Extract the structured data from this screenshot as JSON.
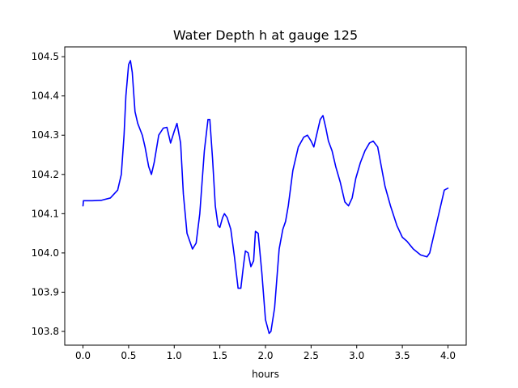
{
  "chart_data": {
    "type": "line",
    "title": "Water Depth h at gauge 125",
    "xlabel": "hours",
    "ylabel": "",
    "xlim": [
      -0.2,
      4.2
    ],
    "ylim": [
      103.765,
      104.525
    ],
    "x_ticks": [
      "0.0",
      "0.5",
      "1.0",
      "1.5",
      "2.0",
      "2.5",
      "3.0",
      "3.5",
      "4.0"
    ],
    "x_tick_values": [
      0.0,
      0.5,
      1.0,
      1.5,
      2.0,
      2.5,
      3.0,
      3.5,
      4.0
    ],
    "y_ticks": [
      "103.8",
      "103.9",
      "104.0",
      "104.1",
      "104.2",
      "104.3",
      "104.4",
      "104.5"
    ],
    "y_tick_values": [
      103.8,
      103.9,
      104.0,
      104.1,
      104.2,
      104.3,
      104.4,
      104.5
    ],
    "grid": false,
    "series": [
      {
        "color": "#0000ff",
        "x": [
          0.0,
          0.005,
          0.1,
          0.2,
          0.3,
          0.38,
          0.42,
          0.45,
          0.47,
          0.5,
          0.52,
          0.54,
          0.57,
          0.6,
          0.65,
          0.68,
          0.72,
          0.75,
          0.78,
          0.83,
          0.88,
          0.92,
          0.96,
          1.0,
          1.03,
          1.07,
          1.1,
          1.14,
          1.2,
          1.24,
          1.28,
          1.33,
          1.37,
          1.39,
          1.42,
          1.45,
          1.48,
          1.5,
          1.53,
          1.55,
          1.58,
          1.62,
          1.66,
          1.7,
          1.73,
          1.76,
          1.78,
          1.81,
          1.84,
          1.87,
          1.89,
          1.92,
          1.96,
          2.0,
          2.04,
          2.06,
          2.1,
          2.13,
          2.15,
          2.19,
          2.22,
          2.25,
          2.3,
          2.36,
          2.42,
          2.46,
          2.5,
          2.53,
          2.56,
          2.6,
          2.63,
          2.66,
          2.69,
          2.73,
          2.77,
          2.82,
          2.87,
          2.91,
          2.95,
          2.99,
          3.04,
          3.09,
          3.14,
          3.18,
          3.23,
          3.27,
          3.31,
          3.37,
          3.44,
          3.5,
          3.55,
          3.62,
          3.7,
          3.77,
          3.8,
          3.83,
          3.87,
          3.92,
          3.96,
          4.0
        ],
        "values": [
          104.12,
          104.133,
          104.133,
          104.134,
          104.14,
          104.16,
          104.2,
          104.3,
          104.4,
          104.48,
          104.49,
          104.46,
          104.36,
          104.33,
          104.3,
          104.27,
          104.22,
          104.2,
          104.23,
          104.3,
          104.318,
          104.32,
          104.28,
          104.31,
          104.33,
          104.28,
          104.15,
          104.05,
          104.01,
          104.025,
          104.1,
          104.26,
          104.34,
          104.34,
          104.24,
          104.12,
          104.07,
          104.065,
          104.09,
          104.1,
          104.09,
          104.06,
          103.99,
          103.91,
          103.91,
          103.97,
          104.005,
          104.0,
          103.965,
          103.98,
          104.055,
          104.05,
          103.95,
          103.83,
          103.795,
          103.8,
          103.86,
          103.95,
          104.01,
          104.06,
          104.08,
          104.12,
          104.21,
          104.27,
          104.295,
          104.3,
          104.285,
          104.27,
          104.3,
          104.34,
          104.35,
          104.32,
          104.285,
          104.26,
          104.22,
          104.18,
          104.13,
          104.12,
          104.14,
          104.19,
          104.23,
          104.26,
          104.28,
          104.285,
          104.27,
          104.22,
          104.17,
          104.12,
          104.07,
          104.04,
          104.03,
          104.01,
          103.995,
          103.99,
          104.0,
          104.03,
          104.07,
          104.12,
          104.16,
          104.165
        ]
      }
    ]
  }
}
